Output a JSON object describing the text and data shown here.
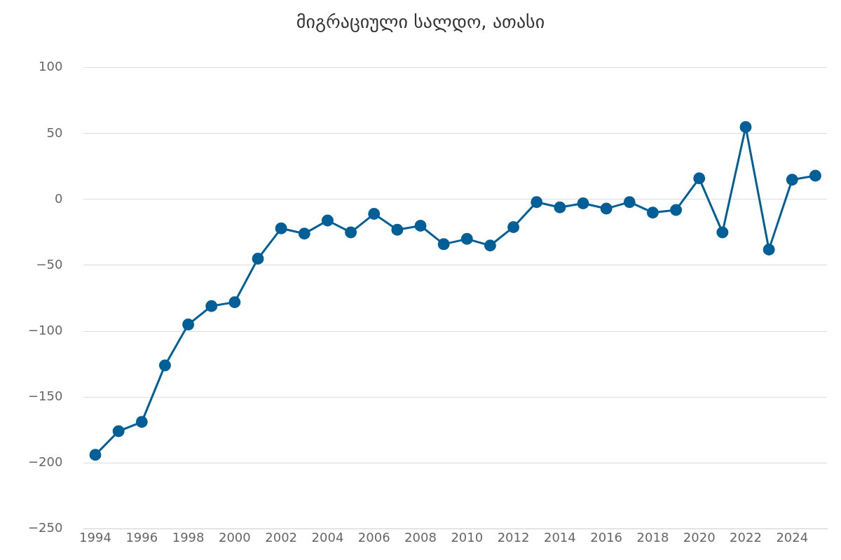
{
  "chart_data": {
    "type": "line",
    "title": "მიგრაციული სალდო, ათასი",
    "x": [
      1994,
      1995,
      1996,
      1997,
      1998,
      1999,
      2000,
      2001,
      2002,
      2003,
      2004,
      2005,
      2006,
      2007,
      2008,
      2009,
      2010,
      2011,
      2012,
      2013,
      2014,
      2015,
      2016,
      2017,
      2018,
      2019,
      2020,
      2021,
      2022,
      2023,
      2024,
      2025
    ],
    "series": [
      {
        "color": "#005f96",
        "values": [
          -194,
          -176,
          -169,
          -126,
          -95,
          -81,
          -78,
          -45,
          -22,
          -26,
          -16,
          -25,
          -11,
          -23,
          -20,
          -34,
          -30,
          -35,
          -21,
          -2,
          -6,
          -3,
          -7,
          -2,
          -10,
          -8,
          16,
          -25,
          55,
          -38,
          15,
          18
        ]
      }
    ],
    "xlim": [
      1993.5,
      2025.5
    ],
    "xticks": [
      1994,
      1996,
      1998,
      2000,
      2002,
      2004,
      2006,
      2008,
      2010,
      2012,
      2014,
      2016,
      2018,
      2020,
      2022,
      2024
    ],
    "ylim": [
      -250,
      100
    ],
    "yticks": [
      {
        "value": -250,
        "label": "−250"
      },
      {
        "value": -200,
        "label": "−200"
      },
      {
        "value": -150,
        "label": "−150"
      },
      {
        "value": -100,
        "label": "−100"
      },
      {
        "value": -50,
        "label": "−50"
      },
      0,
      50,
      100
    ],
    "grid": "y",
    "legend": false,
    "marker": "circle",
    "line_style": "solid"
  }
}
